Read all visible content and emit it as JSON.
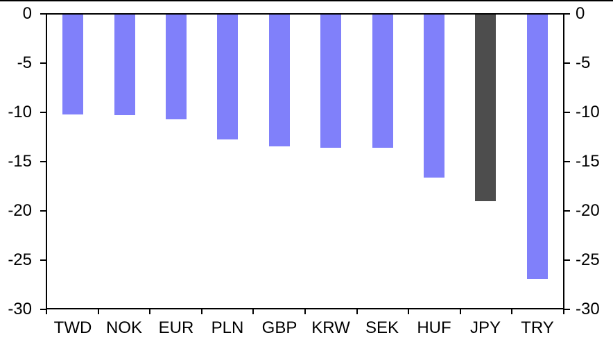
{
  "chart_data": {
    "type": "bar",
    "title": "",
    "xlabel": "",
    "ylabel": "",
    "categories": [
      "TWD",
      "NOK",
      "EUR",
      "PLN",
      "GBP",
      "KRW",
      "SEK",
      "HUF",
      "JPY",
      "TRY"
    ],
    "values": [
      -10.2,
      -10.3,
      -10.7,
      -12.8,
      -13.5,
      -13.6,
      -13.6,
      -16.7,
      -19.1,
      -27.0
    ],
    "bar_colors": [
      "#8080FA",
      "#8080FA",
      "#8080FA",
      "#8080FA",
      "#8080FA",
      "#8080FA",
      "#8080FA",
      "#8080FA",
      "#4D4D4D",
      "#8080FA"
    ],
    "highlight_category": "JPY",
    "ylim": [
      -30,
      0
    ],
    "yticks": [
      0,
      -5,
      -10,
      -15,
      -20,
      -25,
      -30
    ],
    "ytick_labels_left": [
      "0",
      "-5",
      "-10",
      "-15",
      "-20",
      "-25",
      "-30"
    ],
    "ytick_labels_right": [
      "0",
      "-5",
      "-10",
      "-15",
      "-20",
      "-25",
      "-30"
    ],
    "grid": false,
    "legend": null,
    "axes": {
      "left": true,
      "right": true,
      "bottom": true,
      "top_zero_line": true
    }
  },
  "colors": {
    "bar_blue": "#8080FA",
    "bar_dark": "#4D4D4D",
    "axis": "#000000",
    "background": "#ffffff",
    "text": "#000000"
  }
}
